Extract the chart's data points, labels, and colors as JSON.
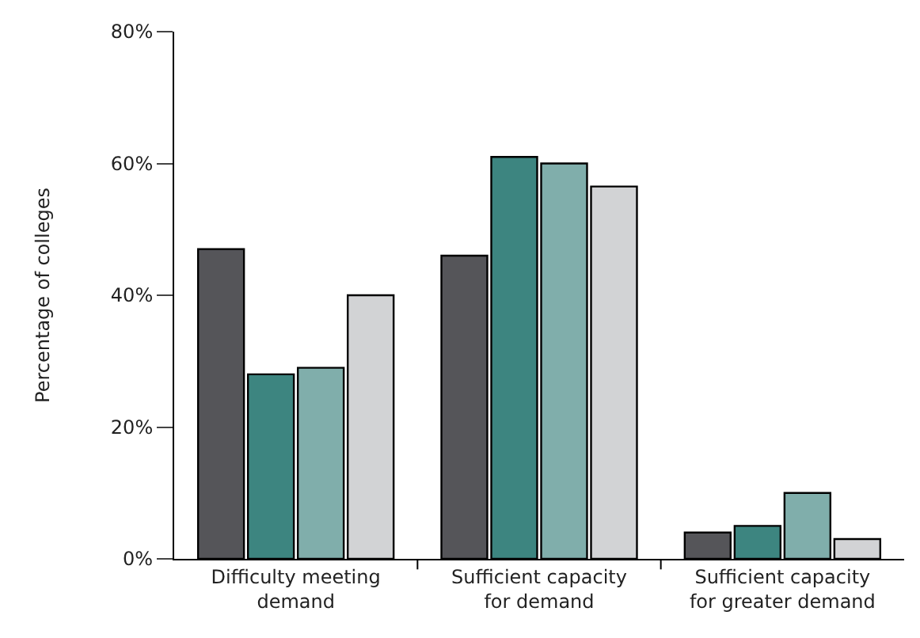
{
  "chart_data": {
    "type": "bar",
    "ylabel": "Percentage of colleges",
    "categories": [
      "Difficulty meeting demand",
      "Sufficient capacity for demand",
      "Sufficient capacity for greater demand"
    ],
    "series": [
      {
        "color": "#555559",
        "values": [
          47,
          46,
          4
        ]
      },
      {
        "color": "#3d8580",
        "values": [
          28,
          61,
          5
        ]
      },
      {
        "color": "#80aeab",
        "values": [
          29,
          60,
          10
        ]
      },
      {
        "color": "#d2d3d5",
        "values": [
          40,
          56.5,
          3
        ]
      }
    ],
    "ylim": [
      0,
      80
    ],
    "yticks": [
      {
        "value": 0,
        "label": "0%"
      },
      {
        "value": 20,
        "label": "20%"
      },
      {
        "value": 40,
        "label": "40%"
      },
      {
        "value": 60,
        "label": "60%"
      },
      {
        "value": 80,
        "label": "80%"
      }
    ]
  }
}
